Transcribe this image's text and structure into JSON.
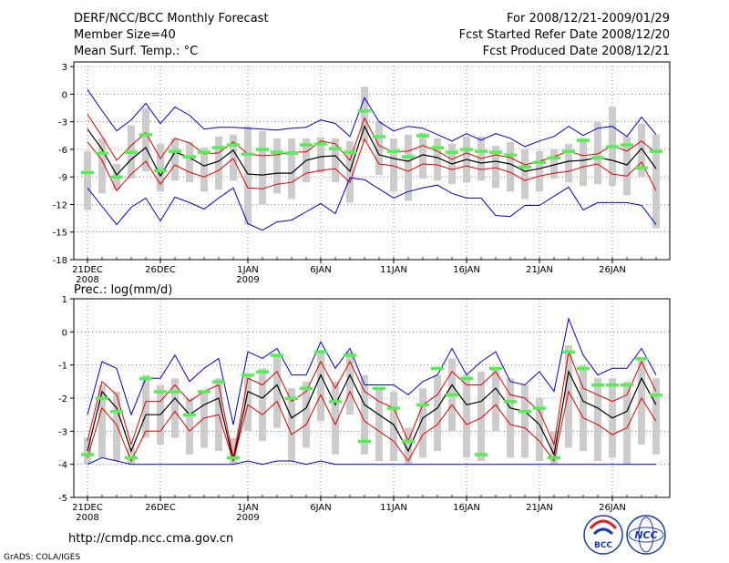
{
  "header": {
    "title": "DERF/NCC/BCC Monthly Forecast",
    "member_size": "Member Size=40",
    "variable": "Mean Surf. Temp.: °C",
    "period": "For 2008/12/21-2009/01/29",
    "started": "Fcst Started Refer Date 2008/12/20",
    "produced": "Fcst Produced Date 2008/12/21"
  },
  "footer": {
    "url": "http://cmdp.ncc.cma.gov.cn",
    "credit": "GrADS: COLA/IGES",
    "logo_bcc": "BCC",
    "logo_ncc": "NCC"
  },
  "colors": {
    "max_min": "#0000cc",
    "spread": "#dd0000",
    "mean": "#000000",
    "box": "#cccccc",
    "member_mark": "#55ee55"
  },
  "chart_data": [
    {
      "type": "line",
      "title": "Mean Surf. Temp.: °C",
      "xlabel": "",
      "ylabel": "",
      "ylim": [
        -18,
        3.5
      ],
      "yticks": [
        3,
        0,
        -3,
        -6,
        -9,
        -12,
        -15,
        -18
      ],
      "x_tick_labels": [
        {
          "day": 1,
          "label": "21DEC",
          "sub": "2008"
        },
        {
          "day": 6,
          "label": "26DEC"
        },
        {
          "day": 12,
          "label": "1JAN",
          "sub": "2009"
        },
        {
          "day": 17,
          "label": "6JAN"
        },
        {
          "day": 22,
          "label": "11JAN"
        },
        {
          "day": 27,
          "label": "16JAN"
        },
        {
          "day": 32,
          "label": "21JAN"
        },
        {
          "day": 37,
          "label": "26JAN"
        }
      ],
      "x": [
        1,
        2,
        3,
        4,
        5,
        6,
        7,
        8,
        9,
        10,
        11,
        12,
        13,
        14,
        15,
        16,
        17,
        18,
        19,
        20,
        21,
        22,
        23,
        24,
        25,
        26,
        27,
        28,
        29,
        30,
        31,
        32,
        33,
        34,
        35,
        36,
        37,
        38,
        39,
        40
      ],
      "series": [
        {
          "name": "max",
          "role": "max",
          "values": [
            0.5,
            -1.8,
            -4,
            -2.8,
            -1,
            -3.2,
            -1.4,
            -2.3,
            -3.8,
            -3.6,
            -3.6,
            -3.7,
            -3.8,
            -3.9,
            -3.7,
            -3.6,
            -2.8,
            -3.2,
            -4.6,
            -0.4,
            -3,
            -4,
            -3.5,
            -3.7,
            -4.4,
            -5.1,
            -4.3,
            -5,
            -4.3,
            -4.8,
            -5.7,
            -5.1,
            -4.6,
            -3.5,
            -4.5,
            -3.7,
            -3.5,
            -4.6,
            -2.5,
            -4.4
          ]
        },
        {
          "name": "upper",
          "role": "spread",
          "values": [
            -2.2,
            -4.6,
            -7.2,
            -5.6,
            -4.2,
            -7,
            -4.8,
            -5.3,
            -6.5,
            -6.4,
            -5.2,
            -6.5,
            -6.7,
            -6.6,
            -6.3,
            -6.3,
            -5.1,
            -5.4,
            -7.2,
            -2.6,
            -5.6,
            -6.3,
            -6.2,
            -5.6,
            -6.2,
            -7.1,
            -6.4,
            -7,
            -6.6,
            -6.9,
            -7.7,
            -7.3,
            -6.8,
            -6.2,
            -6.7,
            -6.5,
            -5.6,
            -6.2,
            -5.1,
            -6.4
          ]
        },
        {
          "name": "mean",
          "role": "mean",
          "values": [
            -3.8,
            -6,
            -8.8,
            -7.1,
            -5.8,
            -8.9,
            -6.3,
            -6.9,
            -7.8,
            -7.3,
            -6.1,
            -8.7,
            -8.8,
            -8.6,
            -8.6,
            -7.2,
            -6.8,
            -6.7,
            -8.4,
            -3.5,
            -6.6,
            -7,
            -7.3,
            -6.6,
            -6.9,
            -7.6,
            -7.1,
            -7.5,
            -7.3,
            -7.6,
            -8.4,
            -8.1,
            -7.7,
            -7.3,
            -7.2,
            -6.9,
            -7.2,
            -7.7,
            -5.9,
            -8.1
          ]
        },
        {
          "name": "lower",
          "role": "spread",
          "values": [
            -5.2,
            -7.2,
            -10.5,
            -8.7,
            -7.3,
            -9.8,
            -7.7,
            -8.5,
            -9,
            -8.3,
            -7,
            -10.2,
            -10.3,
            -9.8,
            -9.6,
            -8.6,
            -8.3,
            -8.1,
            -9.6,
            -4.9,
            -7.6,
            -7.8,
            -8.4,
            -7.6,
            -7.7,
            -8.2,
            -7.8,
            -8.2,
            -8,
            -8.5,
            -9.4,
            -8.9,
            -8.6,
            -8.4,
            -7.9,
            -7.6,
            -8.7,
            -8.9,
            -7.4,
            -10.5
          ]
        },
        {
          "name": "min",
          "role": "min",
          "values": [
            -10.2,
            -12.2,
            -14.2,
            -12.3,
            -11.3,
            -13.8,
            -11.2,
            -11.8,
            -12.5,
            -11.3,
            -10.2,
            -14.1,
            -14.8,
            -13.9,
            -13.7,
            -12.8,
            -11.9,
            -13,
            -9.1,
            -9.3,
            -10.3,
            -11.3,
            -10.6,
            -10.2,
            -9.9,
            -10.8,
            -11.3,
            -11.3,
            -13.2,
            -13.3,
            -12.1,
            -12.1,
            -11.1,
            -10.1,
            -12.6,
            -11.8,
            -11.8,
            -11.8,
            -12.1,
            -14.2
          ]
        }
      ],
      "boxes": [
        [
          -12.6,
          -6.2
        ],
        [
          -10.8,
          -4.8
        ],
        [
          -10.4,
          -7.6
        ],
        [
          -9.2,
          -3.4
        ],
        [
          -8.4,
          -1.5
        ],
        [
          -10.6,
          -5.4
        ],
        [
          -9.4,
          -4.8
        ],
        [
          -9.6,
          -5.2
        ],
        [
          -10.6,
          -5.8
        ],
        [
          -10.4,
          -4.6
        ],
        [
          -9.4,
          -4.4
        ],
        [
          -14.2,
          -3.5
        ],
        [
          -12,
          -4
        ],
        [
          -10.8,
          -4.8
        ],
        [
          -11.4,
          -4.8
        ],
        [
          -9.6,
          -4.8
        ],
        [
          -8.6,
          -4.7
        ],
        [
          -9.6,
          -4.8
        ],
        [
          -11.8,
          -5.1
        ],
        [
          -5.2,
          0.8
        ],
        [
          -8.8,
          -3
        ],
        [
          -10.6,
          -4.8
        ],
        [
          -11.6,
          -4.4
        ],
        [
          -9.2,
          -4.2
        ],
        [
          -9.4,
          -4.8
        ],
        [
          -9.8,
          -5.4
        ],
        [
          -9.6,
          -4.6
        ],
        [
          -9.4,
          -4.6
        ],
        [
          -10.2,
          -5.6
        ],
        [
          -10.6,
          -5.2
        ],
        [
          -11.4,
          -6
        ],
        [
          -10.6,
          -6.2
        ],
        [
          -9.2,
          -6
        ],
        [
          -9.6,
          -5.4
        ],
        [
          -10,
          -4.8
        ],
        [
          -9.8,
          -3
        ],
        [
          -10,
          -1.4
        ],
        [
          -11,
          -4.6
        ],
        [
          -9,
          -3.2
        ],
        [
          -14.6,
          -4.4
        ]
      ],
      "member_marks": [
        -8.5,
        -6.4,
        -9,
        -6.3,
        -4.4,
        -8.3,
        -6.2,
        -6.8,
        -6.3,
        -5.8,
        -5.5,
        -6.5,
        -6,
        -6.3,
        -6.4,
        -5.5,
        -5.4,
        -5.9,
        -6.3,
        -1.8,
        -4.6,
        -6.2,
        -6.8,
        -4.5,
        -5.8,
        -6.3,
        -6,
        -6.2,
        -6.3,
        -6.6,
        -7.9,
        -7.4,
        -6.9,
        -6.2,
        -5,
        -6.9,
        -5.7,
        -5.5,
        -8,
        -6.2
      ]
    },
    {
      "type": "line",
      "title": "Prec.: log(mm/d)",
      "xlabel": "",
      "ylabel": "",
      "ylim": [
        -5,
        1
      ],
      "yticks": [
        1,
        0,
        -1,
        -2,
        -3,
        -4,
        -5
      ],
      "x_tick_labels": [
        {
          "day": 1,
          "label": "21DEC",
          "sub": "2008"
        },
        {
          "day": 6,
          "label": "26DEC"
        },
        {
          "day": 12,
          "label": "1JAN",
          "sub": "2009"
        },
        {
          "day": 17,
          "label": "6JAN"
        },
        {
          "day": 22,
          "label": "11JAN"
        },
        {
          "day": 27,
          "label": "16JAN"
        },
        {
          "day": 32,
          "label": "21JAN"
        },
        {
          "day": 37,
          "label": "26JAN"
        }
      ],
      "x": [
        1,
        2,
        3,
        4,
        5,
        6,
        7,
        8,
        9,
        10,
        11,
        12,
        13,
        14,
        15,
        16,
        17,
        18,
        19,
        20,
        21,
        22,
        23,
        24,
        25,
        26,
        27,
        28,
        29,
        30,
        31,
        32,
        33,
        34,
        35,
        36,
        37,
        38,
        39,
        40
      ],
      "series": [
        {
          "name": "max",
          "role": "max",
          "values": [
            -2.5,
            -0.9,
            -1.1,
            -2.5,
            -1.4,
            -1.4,
            -0.7,
            -1.5,
            -1.1,
            -0.8,
            -2.8,
            -0.6,
            -0.8,
            -0.5,
            -1.3,
            -1.3,
            -0.3,
            -1.1,
            -0.5,
            -1.6,
            -1.6,
            -1.6,
            -1.9,
            -1.5,
            -1.3,
            -0.5,
            -1.3,
            -0.9,
            -0.6,
            -1.5,
            -1.6,
            -1.2,
            -1.8,
            0.4,
            -0.7,
            -1.3,
            -1.1,
            -1.1,
            -0.5,
            -1.3
          ]
        },
        {
          "name": "upper",
          "role": "spread",
          "values": [
            -3.3,
            -1.5,
            -1.9,
            -3.4,
            -2.1,
            -2.1,
            -1.6,
            -2.1,
            -1.8,
            -1.6,
            -3.8,
            -1.4,
            -1.6,
            -1.2,
            -2.1,
            -1.8,
            -0.9,
            -1.7,
            -0.9,
            -1.8,
            -2.1,
            -2.3,
            -3.3,
            -2.2,
            -1.9,
            -1.2,
            -1.6,
            -1.6,
            -1.2,
            -1.9,
            -2,
            -2.4,
            -3.4,
            -0.6,
            -1.7,
            -1.9,
            -2.1,
            -1.9,
            -0.9,
            -1.8
          ]
        },
        {
          "name": "mean",
          "role": "mean",
          "values": [
            -3.6,
            -1.8,
            -2.3,
            -3.6,
            -2.5,
            -2.5,
            -2,
            -2.5,
            -2.2,
            -2,
            -3.9,
            -1.8,
            -2,
            -1.6,
            -2.6,
            -2.3,
            -1.3,
            -2.2,
            -1.3,
            -2.2,
            -2.5,
            -2.8,
            -3.6,
            -2.6,
            -2.3,
            -1.6,
            -2.2,
            -2.1,
            -1.7,
            -2.3,
            -2.4,
            -2.8,
            -3.7,
            -1.2,
            -2.1,
            -2.3,
            -2.6,
            -2.4,
            -1.4,
            -2.2
          ]
        },
        {
          "name": "lower",
          "role": "spread",
          "values": [
            -3.8,
            -2.3,
            -2.8,
            -3.9,
            -3,
            -3,
            -2.4,
            -3,
            -2.6,
            -2.5,
            -3.9,
            -2.2,
            -2.5,
            -2.1,
            -3.1,
            -2.8,
            -1.9,
            -2.8,
            -1.8,
            -2.7,
            -3,
            -3.3,
            -3.9,
            -3.1,
            -2.8,
            -2.2,
            -2.8,
            -2.6,
            -2.2,
            -2.8,
            -2.9,
            -3.3,
            -3.9,
            -1.8,
            -2.6,
            -2.8,
            -3.1,
            -2.9,
            -2,
            -2.7
          ]
        },
        {
          "name": "min",
          "role": "min",
          "values": [
            -4,
            -3.8,
            -3.9,
            -4,
            -4,
            -4,
            -4,
            -4,
            -4,
            -4,
            -4,
            -3.9,
            -4,
            -3.9,
            -3.9,
            -4,
            -3.9,
            -4,
            -4,
            -4,
            -4,
            -4,
            -4,
            -4,
            -4,
            -4,
            -4,
            -4,
            -4,
            -4,
            -4,
            -4,
            -4,
            -4,
            -4,
            -4,
            -4,
            -4,
            -4,
            -4
          ]
        }
      ],
      "boxes": [
        [
          -4,
          -3.2
        ],
        [
          -3.8,
          -1.6
        ],
        [
          -3.9,
          -1.8
        ],
        [
          -4,
          -3.5
        ],
        [
          -3.2,
          -1.3
        ],
        [
          -3.4,
          -1.6
        ],
        [
          -3.2,
          -1.4
        ],
        [
          -3.7,
          -2
        ],
        [
          -3.5,
          -1.8
        ],
        [
          -3.6,
          -1.4
        ],
        [
          -4,
          -3.2
        ],
        [
          -3,
          -1.3
        ],
        [
          -3.3,
          -1.1
        ],
        [
          -2.9,
          -0.7
        ],
        [
          -3.9,
          -1.7
        ],
        [
          -3.5,
          -1.5
        ],
        [
          -2.7,
          -0.6
        ],
        [
          -3.7,
          -1.5
        ],
        [
          -2.5,
          -0.6
        ],
        [
          -3.7,
          -1.3
        ],
        [
          -3.9,
          -1.7
        ],
        [
          -3.9,
          -1.8
        ],
        [
          -4,
          -2.9
        ],
        [
          -3.8,
          -1.7
        ],
        [
          -3.6,
          -1.3
        ],
        [
          -3,
          -0.8
        ],
        [
          -3.8,
          -1.3
        ],
        [
          -3.9,
          -1.2
        ],
        [
          -3,
          -1.1
        ],
        [
          -3.8,
          -1.4
        ],
        [
          -3.8,
          -1.6
        ],
        [
          -3.9,
          -2
        ],
        [
          -4,
          -3
        ],
        [
          -3.5,
          -0.4
        ],
        [
          -3.6,
          -1
        ],
        [
          -3.9,
          -1.4
        ],
        [
          -3.8,
          -1.4
        ],
        [
          -4,
          -1.5
        ],
        [
          -3.4,
          -0.8
        ],
        [
          -3.7,
          -1.4
        ]
      ],
      "member_marks": [
        -3.7,
        -2,
        -2.4,
        -3.8,
        -1.4,
        -1.8,
        -1.8,
        -2.5,
        -1.8,
        -1.5,
        -3.8,
        -1.3,
        -1.2,
        -0.7,
        -2,
        -1.7,
        -0.6,
        -2.1,
        -0.7,
        -3.3,
        -1.7,
        -2.3,
        -3.3,
        -2.2,
        -1.1,
        -1.9,
        -1.4,
        -3.7,
        -1.1,
        -2.1,
        -2.4,
        -2.3,
        -3.8,
        -0.6,
        -1.1,
        -1.6,
        -1.6,
        -1.6,
        -0.8,
        -1.9
      ]
    }
  ]
}
